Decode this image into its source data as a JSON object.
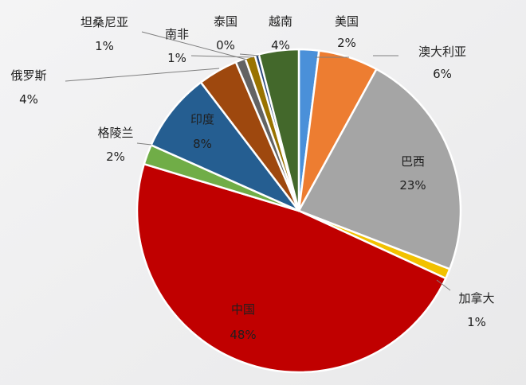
{
  "chart_data": {
    "type": "pie",
    "title": "",
    "start_angle_deg": 0,
    "direction": "clockwise",
    "slices": [
      {
        "name": "美国",
        "value": 2,
        "pct_label": "2%",
        "color": "#4a90d9",
        "label_pos": "outside"
      },
      {
        "name": "澳大利亚",
        "value": 6,
        "pct_label": "6%",
        "color": "#ed7d31",
        "label_pos": "outside"
      },
      {
        "name": "巴西",
        "value": 23,
        "pct_label": "23%",
        "color": "#a5a5a5",
        "label_pos": "inside"
      },
      {
        "name": "加拿大",
        "value": 1,
        "pct_label": "1%",
        "color": "#f2c100",
        "label_pos": "outside"
      },
      {
        "name": "中国",
        "value": 48,
        "pct_label": "48%",
        "color": "#c00000",
        "label_pos": "inside"
      },
      {
        "name": "格陵兰",
        "value": 2,
        "pct_label": "2%",
        "color": "#70ad47",
        "label_pos": "outside"
      },
      {
        "name": "印度",
        "value": 8,
        "pct_label": "8%",
        "color": "#255e91",
        "label_pos": "inside"
      },
      {
        "name": "俄罗斯",
        "value": 4,
        "pct_label": "4%",
        "color": "#9e480e",
        "label_pos": "outside"
      },
      {
        "name": "坦桑尼亚",
        "value": 1,
        "pct_label": "1%",
        "color": "#636363",
        "label_pos": "outside"
      },
      {
        "name": "南非",
        "value": 1,
        "pct_label": "1%",
        "color": "#997300",
        "label_pos": "outside"
      },
      {
        "name": "泰国",
        "value": 0.4,
        "pct_label": "0%",
        "color": "#264478",
        "label_pos": "outside"
      },
      {
        "name": "越南",
        "value": 4,
        "pct_label": "4%",
        "color": "#43682b",
        "label_pos": "outside"
      }
    ]
  }
}
